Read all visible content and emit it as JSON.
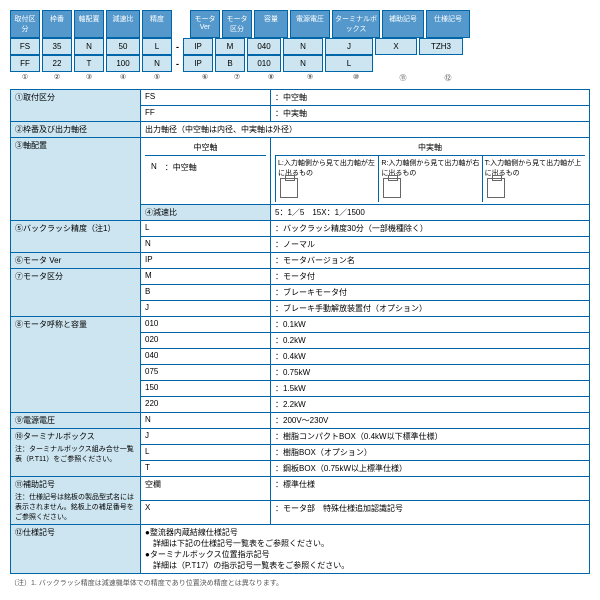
{
  "headers": [
    "取付区分",
    "枠番",
    "軸配置",
    "減速比",
    "精度",
    "モータVer",
    "モータ区分",
    "容量",
    "電源電圧",
    "ターミナルボックス",
    "補助記号",
    "仕様記号"
  ],
  "row1": [
    "FS",
    "35",
    "N",
    "50",
    "L",
    "-",
    "IP",
    "M",
    "040",
    "N",
    "J",
    "X",
    "TZH3"
  ],
  "row2": [
    "FF",
    "22",
    "T",
    "100",
    "N",
    "-",
    "IP",
    "B",
    "010",
    "N",
    "L",
    "",
    ""
  ],
  "nums": [
    "①",
    "②",
    "③",
    "④",
    "⑤",
    "",
    "⑥",
    "⑦",
    "⑧",
    "⑨",
    "⑩",
    "⑪",
    "⑫"
  ],
  "widths": [
    "w30",
    "w30",
    "w30",
    "w34",
    "w30",
    "",
    "w30",
    "w30",
    "w34",
    "w40",
    "w48",
    "w42",
    "w44"
  ],
  "spec": [
    {
      "n": "①取付区分",
      "rows": [
        [
          "FS",
          "：中空軸"
        ],
        [
          "FF",
          "：中実軸"
        ]
      ]
    },
    {
      "n": "②枠番及び出力軸径",
      "rows": [
        [
          "",
          "出力軸径（中空軸は内径、中実軸は外径）"
        ]
      ]
    },
    {
      "n": "③軸配置",
      "diagram": true,
      "hollow": "中空軸",
      "solid": "中実軸",
      "n_label": "N",
      "n_text": "：中空軸",
      "d": [
        "L:入力軸側から見て出力軸が左に出るもの",
        "R:入力軸側から見て出力軸が右に出るもの",
        "T:入力軸側から見て出力軸が上に出るもの"
      ]
    },
    {
      "n": "④減速比",
      "rows": [
        [
          "",
          "5：1／5　15X：1／1500"
        ]
      ]
    },
    {
      "n": "⑤バックラッシ精度（注1）",
      "rows": [
        [
          "L",
          "：バックラッシ精度30分（一部機種除く）"
        ],
        [
          "N",
          "：ノーマル"
        ]
      ]
    },
    {
      "n": "⑥モータ Ver",
      "rows": [
        [
          "IP",
          "：モータバージョン名"
        ]
      ]
    },
    {
      "n": "⑦モータ区分",
      "rows": [
        [
          "M",
          "：モータ付"
        ],
        [
          "B",
          "：ブレーキモータ付"
        ],
        [
          "J",
          "：ブレーキ手動解放装置付（オプション）"
        ]
      ]
    },
    {
      "n": "⑧モータ呼称と容量",
      "rows": [
        [
          "010",
          "：0.1kW"
        ],
        [
          "020",
          "：0.2kW"
        ],
        [
          "040",
          "：0.4kW"
        ],
        [
          "075",
          "：0.75kW"
        ],
        [
          "150",
          "：1.5kW"
        ],
        [
          "220",
          "：2.2kW"
        ]
      ]
    },
    {
      "n": "⑨電源電圧",
      "rows": [
        [
          "N",
          "：200V〜230V"
        ]
      ]
    },
    {
      "n": "⑩ターミナルボックス",
      "note": "注：ターミナルボックス組み合せ一覧表（P.T11）をご参照ください。",
      "rows": [
        [
          "J",
          "：樹脂コンパクトBOX（0.4kW以下標準仕様）"
        ],
        [
          "L",
          "：樹脂BOX（オプション）"
        ],
        [
          "T",
          "：鋼板BOX（0.75kW以上標準仕様）"
        ]
      ]
    },
    {
      "n": "⑪補助記号",
      "note": "注：仕様記号は銘板の製品型式名には表示されません。銘板上の補足番号をご参照ください。",
      "rows": [
        [
          "空欄",
          "：標準仕様"
        ],
        [
          "X",
          "：モータ部　特殊仕様追加認識記号"
        ]
      ]
    },
    {
      "n": "⑫仕様記号",
      "rows": [
        [
          "",
          "●整流器内蔵結線仕様記号\n　詳細は下記の仕様記号一覧表をご参照ください。\n●ターミナルボックス位置指示記号\n　詳細は（P.T17）の指示記号一覧表をご参照ください。"
        ]
      ]
    }
  ],
  "footnote": "（注）1. バックラッシ精度は減速機単体での精度であり位置決め精度とは異なります。"
}
